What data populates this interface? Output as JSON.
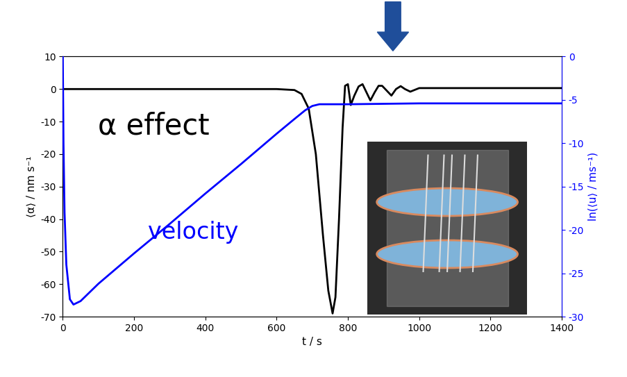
{
  "chart_data": {
    "type": "line",
    "x_label": "t / s",
    "y_label": "⟨α⟩ / nm s⁻¹",
    "y2_label": "ln(⟨u⟩ / ms⁻¹)",
    "xlim": [
      0,
      1400
    ],
    "xticks": [
      0,
      200,
      400,
      600,
      800,
      1000,
      1200,
      1400
    ],
    "ylim": [
      -70,
      10
    ],
    "yticks": [
      -70,
      -60,
      -50,
      -40,
      -30,
      -20,
      -10,
      0,
      10
    ],
    "y2lim": [
      -30,
      0
    ],
    "y2ticks": [
      -30,
      -25,
      -20,
      -15,
      -10,
      -5,
      0
    ],
    "series": [
      {
        "name": "α effect",
        "color": "#000000",
        "x": [
          0,
          600,
          650,
          670,
          690,
          710,
          730,
          745,
          757,
          765,
          775,
          785,
          792,
          800,
          808,
          818,
          830,
          841,
          852,
          863,
          875,
          886,
          896,
          909,
          922,
          935,
          948,
          960,
          975,
          1000,
          1050,
          1400
        ],
        "values": [
          0,
          0,
          -0.3,
          -1.5,
          -6,
          -20,
          -45,
          -62,
          -69,
          -64,
          -40,
          -12,
          1,
          1.5,
          -4.9,
          -2,
          0.8,
          1.5,
          -1,
          -3.5,
          -1,
          1,
          1,
          -0.5,
          -2,
          0,
          0.9,
          0,
          -0.8,
          0.3,
          0.3,
          0.3
        ]
      },
      {
        "name": "velocity",
        "color": "#0000ff",
        "axis": "y2",
        "x": [
          0,
          2,
          5,
          10,
          20,
          30,
          50,
          100,
          200,
          300,
          400,
          500,
          600,
          650,
          680,
          700,
          720,
          760,
          800,
          1000,
          1400
        ],
        "values": [
          0,
          -10,
          -18,
          -24,
          -28,
          -28.6,
          -28.2,
          -26.2,
          -22.7,
          -19.3,
          -15.8,
          -12.4,
          -8.9,
          -7.2,
          -6.2,
          -5.7,
          -5.5,
          -5.5,
          -5.5,
          -5.4,
          -5.4
        ]
      }
    ]
  }
}
